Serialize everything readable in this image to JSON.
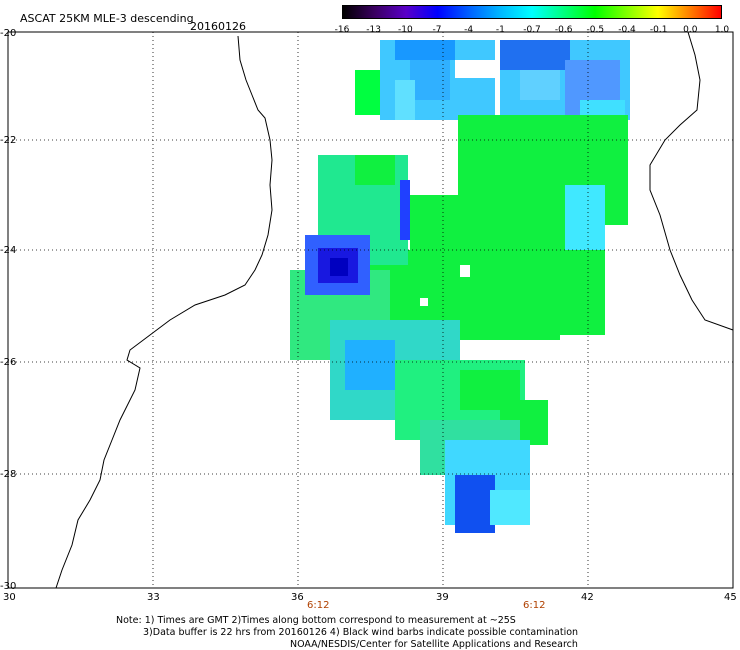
{
  "header": {
    "title": "ASCAT 25KM MLE-3 descending",
    "date": "20160126"
  },
  "colorbar": {
    "labels": [
      "-16",
      "-13",
      "-10",
      "-7",
      "-4",
      "-1",
      "-0.7",
      "-0.6",
      "-0.5",
      "-0.4",
      "-0.1",
      "0.0",
      "1.0"
    ],
    "colors": [
      "#000000",
      "#3a0060",
      "#5a00c8",
      "#0000ff",
      "#0060ff",
      "#00b8ff",
      "#00ffff",
      "#00ff80",
      "#00ff00",
      "#80ff00",
      "#ffff00",
      "#ff8000",
      "#ff0000"
    ]
  },
  "axes": {
    "lon_ticks": [
      "30",
      "33",
      "36",
      "39",
      "42",
      "45"
    ],
    "lat_ticks": [
      "-20",
      "-22",
      "-24",
      "-26",
      "-28",
      "-30"
    ]
  },
  "time_labels": [
    "6:12",
    "6:12"
  ],
  "footer": {
    "note1": "Note: 1) Times are GMT 2)Times along bottom correspond to measurement at ~25S",
    "note2": "3)Data buffer is 22 hrs from 20160126 4) Black wind barbs indicate possible contamination",
    "note3": "NOAA/NESDIS/Center for Satellite Applications and Research"
  }
}
